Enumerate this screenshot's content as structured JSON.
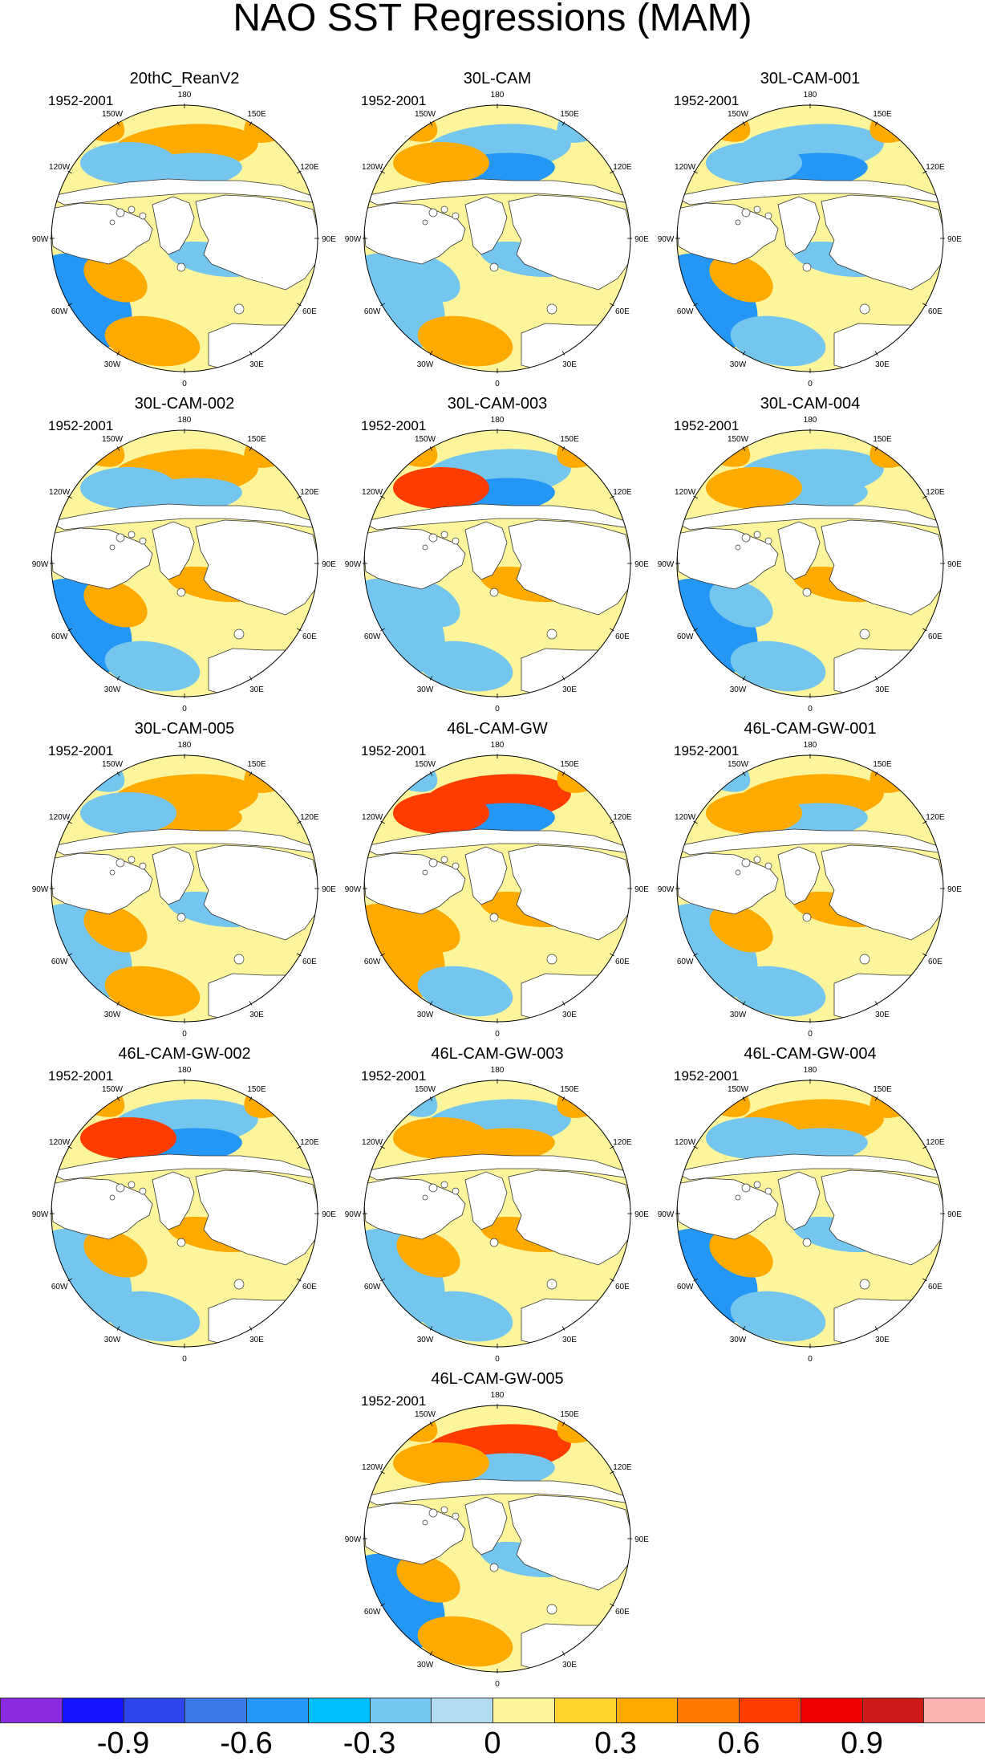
{
  "title": "NAO SST Regressions (MAM)",
  "period": "1952-2001",
  "tick_labels": {
    "lon_180": "180",
    "lon_150w": "150W",
    "lon_120w": "120W",
    "lon_90w": "90W",
    "lon_60w": "60W",
    "lon_30w": "30W",
    "lon_0": "0",
    "lon_30e": "30E",
    "lon_60e": "60E",
    "lon_90e": "90E",
    "lon_120e": "120E",
    "lon_150e": "150E"
  },
  "panels": [
    {
      "name": "20thC_ReanV2",
      "pattern": [
        0.3,
        -0.3,
        0.3,
        0.3,
        -0.3,
        -0.6,
        0.3,
        0.3,
        -0.3,
        0.3
      ]
    },
    {
      "name": "30L-CAM",
      "pattern": [
        -0.3,
        -0.6,
        0.3,
        -0.3,
        0.3,
        -0.3,
        -0.3,
        0.3,
        -0.3,
        0.3
      ]
    },
    {
      "name": "30L-CAM-001",
      "pattern": [
        -0.3,
        -0.6,
        0.3,
        0.3,
        -0.3,
        -0.6,
        0.3,
        -0.3,
        -0.3,
        0.6
      ]
    },
    {
      "name": "30L-CAM-002",
      "pattern": [
        0.3,
        -0.3,
        0.3,
        0.3,
        -0.3,
        -0.6,
        0.3,
        -0.3,
        0.3,
        0.9
      ]
    },
    {
      "name": "30L-CAM-003",
      "pattern": [
        -0.3,
        -0.6,
        0.3,
        0.3,
        0.6,
        -0.3,
        -0.3,
        -0.3,
        0.3,
        0.6
      ]
    },
    {
      "name": "30L-CAM-004",
      "pattern": [
        -0.3,
        -0.3,
        0.3,
        0.3,
        0.3,
        -0.6,
        -0.3,
        -0.3,
        0.3,
        0.6
      ]
    },
    {
      "name": "30L-CAM-005",
      "pattern": [
        0.3,
        0.3,
        -0.3,
        0.3,
        -0.3,
        -0.3,
        0.3,
        0.3,
        -0.3,
        0.3
      ]
    },
    {
      "name": "46L-CAM-GW",
      "pattern": [
        0.6,
        -0.6,
        -0.3,
        0.3,
        0.6,
        0.3,
        0.3,
        -0.3,
        0.3,
        0.6
      ]
    },
    {
      "name": "46L-CAM-GW-001",
      "pattern": [
        0.3,
        -0.3,
        -0.3,
        0.3,
        0.3,
        -0.3,
        0.3,
        -0.3,
        0.3,
        0.3
      ]
    },
    {
      "name": "46L-CAM-GW-002",
      "pattern": [
        -0.3,
        -0.6,
        0.3,
        0.3,
        0.6,
        -0.3,
        0.3,
        -0.3,
        0.3,
        0.6
      ]
    },
    {
      "name": "46L-CAM-GW-003",
      "pattern": [
        -0.3,
        0.3,
        -0.3,
        0.3,
        0.3,
        -0.3,
        0.3,
        -0.3,
        0.3,
        0.3
      ]
    },
    {
      "name": "46L-CAM-GW-004",
      "pattern": [
        0.3,
        -0.3,
        0.3,
        0.3,
        -0.3,
        -0.6,
        0.3,
        -0.3,
        -0.3,
        0.3
      ]
    },
    {
      "name": "46L-CAM-GW-005",
      "pattern": [
        0.6,
        -0.3,
        0.3,
        0.3,
        0.3,
        -0.6,
        0.3,
        0.3,
        -0.3,
        0.3
      ]
    }
  ],
  "colorbar": {
    "colors": [
      "#8a2be2",
      "#1414ff",
      "#2f45ec",
      "#3b78e8",
      "#2496f5",
      "#00bfff",
      "#74c6ef",
      "#b3dcf2",
      "#fdf59b",
      "#ffd42d",
      "#ffaa00",
      "#ff7a00",
      "#ff3c00",
      "#ee0000",
      "#cc1a1a",
      "#ffb4b4"
    ],
    "labels": [
      "-0.9",
      "-0.6",
      "-0.3",
      "0",
      "0.3",
      "0.6",
      "0.9"
    ]
  }
}
